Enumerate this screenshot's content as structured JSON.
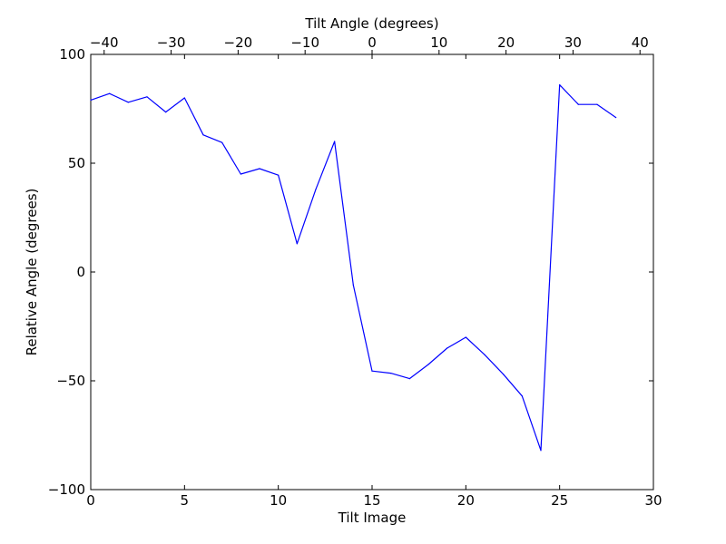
{
  "chart_data": {
    "type": "line",
    "xlabel": "Tilt Image",
    "ylabel": "Relative Angle (degrees)",
    "top_xlabel": "Tilt Angle (degrees)",
    "xlim": [
      0,
      30
    ],
    "ylim": [
      -100,
      100
    ],
    "top_xlim": [
      -42,
      42
    ],
    "grid": false,
    "legend": "none",
    "line_color": "#0000ff",
    "x_ticks": [
      0,
      5,
      10,
      15,
      20,
      25,
      30
    ],
    "x_tick_labels": [
      "0",
      "5",
      "10",
      "15",
      "20",
      "25",
      "30"
    ],
    "y_ticks": [
      -100,
      -50,
      0,
      50,
      100
    ],
    "y_tick_labels": [
      "−100",
      "−50",
      "0",
      "50",
      "100"
    ],
    "top_x_ticks": [
      -40,
      -30,
      -20,
      -10,
      0,
      10,
      20,
      30,
      40
    ],
    "top_x_tick_labels": [
      "−40",
      "−30",
      "−20",
      "−10",
      "0",
      "10",
      "20",
      "30",
      "40"
    ],
    "series": [
      {
        "x": [
          0,
          1,
          2,
          3,
          4,
          5,
          6,
          7,
          8,
          9,
          10,
          11,
          12,
          13,
          14,
          15,
          16,
          17,
          18,
          19,
          20,
          21,
          22,
          23,
          24,
          25,
          26,
          27,
          28
        ],
        "y": [
          79,
          82,
          78,
          80.5,
          73.5,
          80,
          63,
          59.5,
          45,
          47.5,
          44.5,
          13,
          38,
          60,
          -6,
          -45.5,
          -46.5,
          -49,
          -42.5,
          -35,
          -30,
          -38,
          -47,
          -57,
          -82,
          86,
          77,
          77,
          71
        ]
      }
    ]
  }
}
